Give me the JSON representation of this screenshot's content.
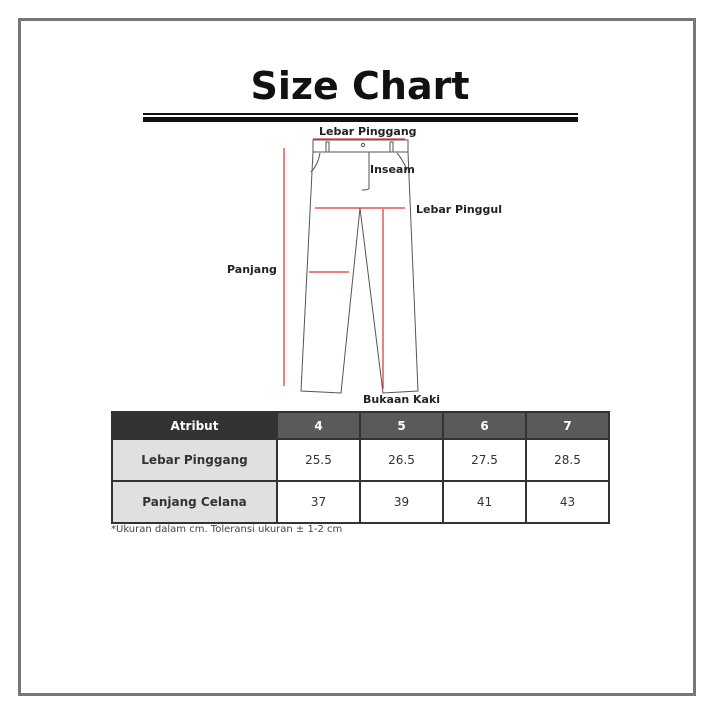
{
  "title": "Size Chart",
  "labels": {
    "waist": "Lebar Pinggang",
    "inseam": "Inseam",
    "hip": "Lebar Pinggul",
    "length": "Panjang",
    "leg_opening": "Bukaan Kaki"
  },
  "table": {
    "header": [
      "Atribut",
      "4",
      "5",
      "6",
      "7"
    ],
    "rows": [
      {
        "label": "Lebar Pinggang",
        "values": [
          "25.5",
          "26.5",
          "27.5",
          "28.5"
        ]
      },
      {
        "label": "Panjang Celana",
        "values": [
          "37",
          "39",
          "41",
          "43"
        ]
      }
    ]
  },
  "note": "*Ukuran dalam cm. Toleransi ukuran ± 1-2 cm",
  "colors": {
    "measure_line": "#e0303a",
    "header_dark": "#333333",
    "header_size": "#5a5a5a",
    "label_cell": "#e0e0e0"
  }
}
